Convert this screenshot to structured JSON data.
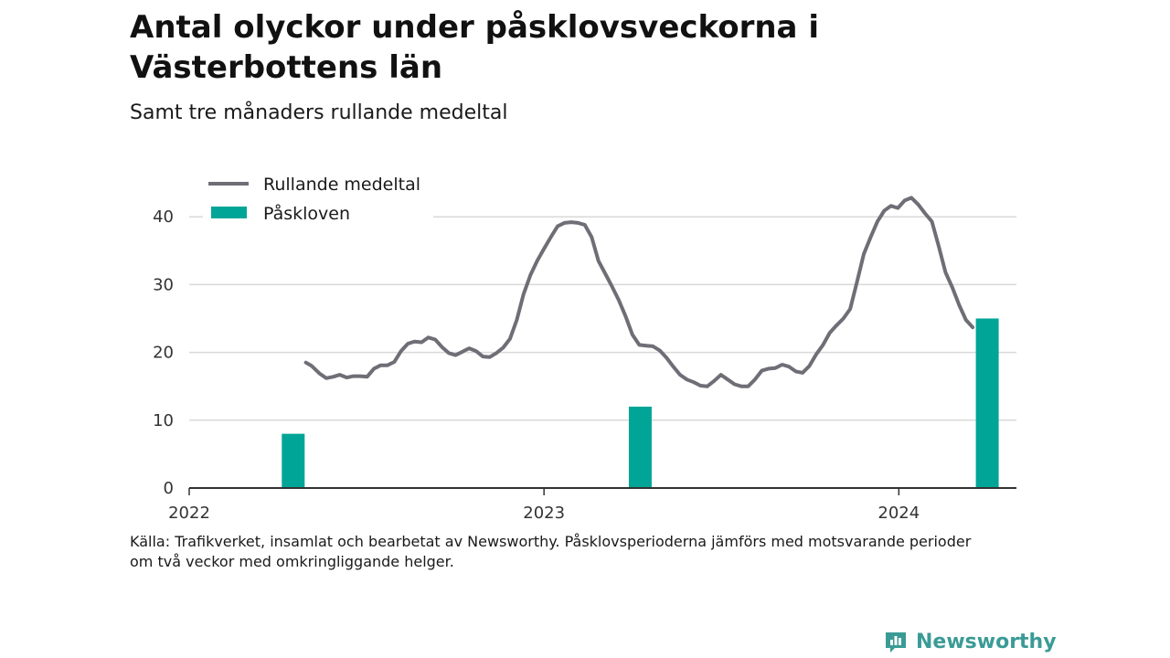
{
  "header": {
    "title": "Antal olyckor under påsklovsveckorna i Västerbottens län",
    "subtitle": "Samt tre månaders rullande medeltal"
  },
  "source": {
    "line1": "Källa: Trafikverket, insamlat och bearbetat av Newsworthy. Påsklovsperioderna jämförs med motsvarande perioder",
    "line2": "om två veckor med omkringliggande helger."
  },
  "brand": {
    "name": "Newsworthy",
    "icon": "newsworthy-logo-icon"
  },
  "colors": {
    "line": "#6f6e76",
    "bar": "#00a597",
    "grid": "#d9d9d9",
    "axis": "#333333",
    "brand": "#3a9b96"
  },
  "chart_data": {
    "type": "bar+line",
    "x_axis": {
      "type": "date",
      "ticks": [
        "2022",
        "2023",
        "2024"
      ],
      "range": [
        "2022-01-01",
        "2024-05-01"
      ]
    },
    "y_axis": {
      "ticks": [
        0,
        10,
        20,
        30,
        40
      ],
      "range": [
        0,
        45
      ]
    },
    "grid": true,
    "legend": {
      "placement": "top-left",
      "entries": [
        "Rullande medeltal",
        "Påskloven"
      ]
    },
    "series": [
      {
        "name": "Rullande medeltal",
        "type": "line",
        "points": [
          [
            "2022-05-01",
            18.5
          ],
          [
            "2022-05-07",
            18.0
          ],
          [
            "2022-05-15",
            16.9
          ],
          [
            "2022-05-22",
            16.2
          ],
          [
            "2022-05-29",
            16.4
          ],
          [
            "2022-06-05",
            16.7
          ],
          [
            "2022-06-12",
            16.3
          ],
          [
            "2022-06-19",
            16.5
          ],
          [
            "2022-06-26",
            16.5
          ],
          [
            "2022-07-03",
            16.4
          ],
          [
            "2022-07-10",
            17.6
          ],
          [
            "2022-07-17",
            18.1
          ],
          [
            "2022-07-24",
            18.1
          ],
          [
            "2022-07-31",
            18.6
          ],
          [
            "2022-08-07",
            20.2
          ],
          [
            "2022-08-14",
            21.3
          ],
          [
            "2022-08-21",
            21.6
          ],
          [
            "2022-08-28",
            21.5
          ],
          [
            "2022-09-04",
            22.2
          ],
          [
            "2022-09-11",
            21.9
          ],
          [
            "2022-09-18",
            20.8
          ],
          [
            "2022-09-25",
            19.9
          ],
          [
            "2022-10-02",
            19.6
          ],
          [
            "2022-10-09",
            20.1
          ],
          [
            "2022-10-16",
            20.6
          ],
          [
            "2022-10-23",
            20.2
          ],
          [
            "2022-10-30",
            19.4
          ],
          [
            "2022-11-06",
            19.3
          ],
          [
            "2022-11-13",
            19.9
          ],
          [
            "2022-11-20",
            20.7
          ],
          [
            "2022-11-27",
            22.0
          ],
          [
            "2022-12-04",
            24.8
          ],
          [
            "2022-12-11",
            28.6
          ],
          [
            "2022-12-18",
            31.4
          ],
          [
            "2022-12-25",
            33.5
          ],
          [
            "2023-01-01",
            35.3
          ],
          [
            "2023-01-08",
            37.0
          ],
          [
            "2023-01-15",
            38.6
          ],
          [
            "2023-01-22",
            39.1
          ],
          [
            "2023-01-29",
            39.2
          ],
          [
            "2023-02-05",
            39.1
          ],
          [
            "2023-02-12",
            38.8
          ],
          [
            "2023-02-19",
            37.0
          ],
          [
            "2023-02-26",
            33.5
          ],
          [
            "2023-03-05",
            31.6
          ],
          [
            "2023-03-12",
            29.7
          ],
          [
            "2023-03-19",
            27.7
          ],
          [
            "2023-03-26",
            25.3
          ],
          [
            "2023-04-02",
            22.6
          ],
          [
            "2023-04-09",
            21.1
          ],
          [
            "2023-04-16",
            21.0
          ],
          [
            "2023-04-23",
            20.9
          ],
          [
            "2023-04-30",
            20.3
          ],
          [
            "2023-05-07",
            19.2
          ],
          [
            "2023-05-14",
            17.9
          ],
          [
            "2023-05-21",
            16.7
          ],
          [
            "2023-05-28",
            16.0
          ],
          [
            "2023-06-04",
            15.6
          ],
          [
            "2023-06-11",
            15.1
          ],
          [
            "2023-06-18",
            15.0
          ],
          [
            "2023-06-25",
            15.8
          ],
          [
            "2023-07-02",
            16.7
          ],
          [
            "2023-07-09",
            16.0
          ],
          [
            "2023-07-16",
            15.3
          ],
          [
            "2023-07-23",
            15.0
          ],
          [
            "2023-07-30",
            15.0
          ],
          [
            "2023-08-06",
            16.0
          ],
          [
            "2023-08-13",
            17.3
          ],
          [
            "2023-08-20",
            17.6
          ],
          [
            "2023-08-27",
            17.7
          ],
          [
            "2023-09-03",
            18.2
          ],
          [
            "2023-09-10",
            17.9
          ],
          [
            "2023-09-17",
            17.2
          ],
          [
            "2023-09-24",
            17.0
          ],
          [
            "2023-10-01",
            18.0
          ],
          [
            "2023-10-08",
            19.7
          ],
          [
            "2023-10-15",
            21.1
          ],
          [
            "2023-10-22",
            22.9
          ],
          [
            "2023-10-29",
            24.0
          ],
          [
            "2023-11-05",
            25.0
          ],
          [
            "2023-11-12",
            26.4
          ],
          [
            "2023-11-19",
            30.4
          ],
          [
            "2023-11-26",
            34.5
          ],
          [
            "2023-12-03",
            37.0
          ],
          [
            "2023-12-10",
            39.3
          ],
          [
            "2023-12-17",
            40.9
          ],
          [
            "2023-12-24",
            41.6
          ],
          [
            "2023-12-31",
            41.3
          ],
          [
            "2024-01-07",
            42.4
          ],
          [
            "2024-01-14",
            42.8
          ],
          [
            "2024-01-21",
            41.8
          ],
          [
            "2024-01-28",
            40.5
          ],
          [
            "2024-02-04",
            39.3
          ],
          [
            "2024-02-11",
            35.7
          ],
          [
            "2024-02-18",
            31.8
          ],
          [
            "2024-02-25",
            29.6
          ],
          [
            "2024-03-03",
            27.0
          ],
          [
            "2024-03-10",
            24.8
          ],
          [
            "2024-03-17",
            23.7
          ]
        ]
      },
      {
        "name": "Påskloven",
        "type": "bar",
        "points": [
          [
            "2022-04-18",
            8
          ],
          [
            "2023-04-10",
            12
          ],
          [
            "2024-04-01",
            25
          ]
        ]
      }
    ]
  }
}
